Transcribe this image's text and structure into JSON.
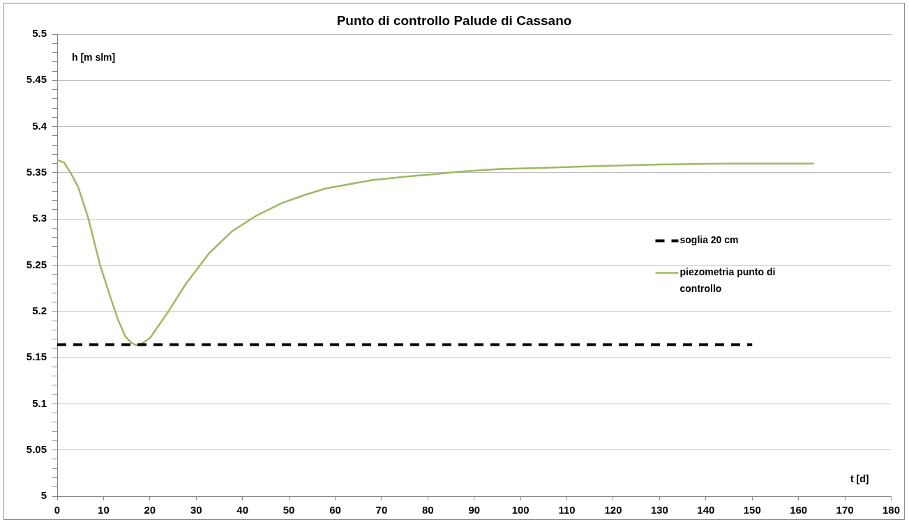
{
  "chart_data": {
    "type": "line",
    "title": "Punto di controllo Palude di Cassano",
    "xlabel": "t [d]",
    "ylabel": "h [m slm]",
    "series": [
      {
        "name": "soglia 20 cm",
        "color": "#000000",
        "line_style": "dashed",
        "x": [
          0,
          150
        ],
        "values": [
          5.164,
          5.164
        ]
      },
      {
        "name": "piezometria punto di controllo",
        "color": "#9bbb59",
        "x": [
          0,
          1.5,
          3,
          4.5,
          6.7,
          9.2,
          11.5,
          13.2,
          14.7,
          16,
          17.2,
          18.5,
          20,
          21.8,
          24,
          27.8,
          32.8,
          37.8,
          42.8,
          48.4,
          53.4,
          57.9,
          67.9,
          75.5,
          82.5,
          86.5,
          95.5,
          103,
          115.6,
          130,
          145,
          163.3
        ],
        "values": [
          5.364,
          5.361,
          5.349,
          5.335,
          5.301,
          5.251,
          5.215,
          5.19,
          5.173,
          5.166,
          5.163,
          5.166,
          5.171,
          5.184,
          5.2,
          5.23,
          5.263,
          5.287,
          5.303,
          5.317,
          5.326,
          5.333,
          5.342,
          5.346,
          5.349,
          5.351,
          5.354,
          5.355,
          5.357,
          5.359,
          5.36,
          5.36
        ]
      }
    ],
    "xlim": [
      0,
      180
    ],
    "xticks": [
      0,
      10,
      20,
      30,
      40,
      50,
      60,
      70,
      80,
      90,
      100,
      110,
      120,
      130,
      140,
      150,
      160,
      170,
      180
    ],
    "ylim": [
      5,
      5.5
    ],
    "yticks": [
      5,
      {
        "value": 5.01,
        "label": null
      },
      {
        "value": 5.02,
        "label": null
      },
      {
        "value": 5.03,
        "label": null
      },
      {
        "value": 5.04,
        "label": null
      },
      5.05,
      {
        "value": 5.06,
        "label": null
      },
      {
        "value": 5.07,
        "label": null
      },
      {
        "value": 5.08,
        "label": null
      },
      {
        "value": 5.09,
        "label": null
      },
      5.1,
      {
        "value": 5.11,
        "label": null
      },
      {
        "value": 5.12,
        "label": null
      },
      {
        "value": 5.13,
        "label": null
      },
      {
        "value": 5.14,
        "label": null
      },
      5.15,
      {
        "value": 5.16,
        "label": null
      },
      {
        "value": 5.17,
        "label": null
      },
      {
        "value": 5.18,
        "label": null
      },
      {
        "value": 5.19,
        "label": null
      },
      5.2,
      {
        "value": 5.21,
        "label": null
      },
      {
        "value": 5.22,
        "label": null
      },
      {
        "value": 5.23,
        "label": null
      },
      {
        "value": 5.24,
        "label": null
      },
      5.25,
      {
        "value": 5.26,
        "label": null
      },
      {
        "value": 5.27,
        "label": null
      },
      {
        "value": 5.28,
        "label": null
      },
      {
        "value": 5.29,
        "label": null
      },
      5.3,
      {
        "value": 5.31,
        "label": null
      },
      {
        "value": 5.32,
        "label": null
      },
      {
        "value": 5.33,
        "label": null
      },
      {
        "value": 5.34,
        "label": null
      },
      5.35,
      {
        "value": 5.36,
        "label": null
      },
      {
        "value": 5.37,
        "label": null
      },
      {
        "value": 5.38,
        "label": null
      },
      {
        "value": 5.39,
        "label": null
      },
      5.4,
      {
        "value": 5.41,
        "label": null
      },
      {
        "value": 5.42,
        "label": null
      },
      {
        "value": 5.43,
        "label": null
      },
      {
        "value": 5.44,
        "label": null
      },
      5.45,
      {
        "value": 5.46,
        "label": null
      },
      {
        "value": 5.47,
        "label": null
      },
      {
        "value": 5.48,
        "label": null
      },
      {
        "value": 5.49,
        "label": null
      },
      5.5
    ],
    "grid": "y",
    "legend": "right"
  }
}
